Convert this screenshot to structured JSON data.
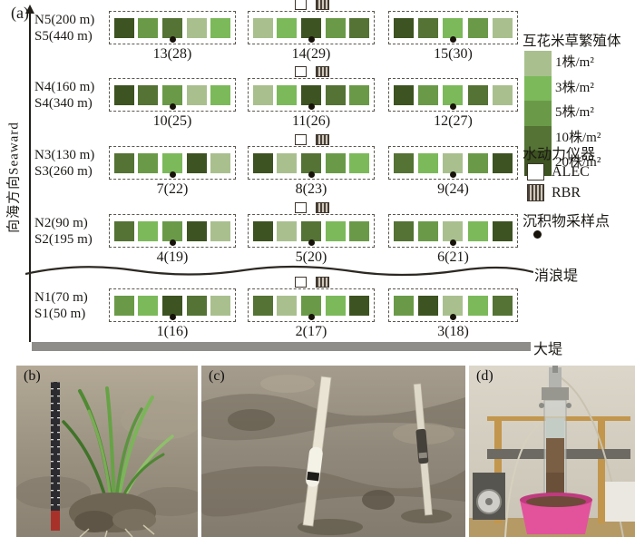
{
  "figure": {
    "panel_label": "(a)",
    "axis_label": "向海方向Seaward",
    "rows": [
      {
        "north_label": "N5(200 m)",
        "south_label": "S5(440 m)",
        "plots": [
          {
            "number": "13(28)",
            "densities": [
              20,
              5,
              10,
              1,
              3
            ]
          },
          {
            "number": "14(29)",
            "densities": [
              1,
              3,
              20,
              5,
              10
            ]
          },
          {
            "number": "15(30)",
            "densities": [
              20,
              10,
              3,
              5,
              1
            ]
          }
        ]
      },
      {
        "north_label": "N4(160 m)",
        "south_label": "S4(340 m)",
        "plots": [
          {
            "number": "10(25)",
            "densities": [
              20,
              10,
              5,
              1,
              3
            ]
          },
          {
            "number": "11(26)",
            "densities": [
              1,
              3,
              20,
              10,
              5
            ]
          },
          {
            "number": "12(27)",
            "densities": [
              20,
              5,
              3,
              10,
              1
            ]
          }
        ]
      },
      {
        "north_label": "N3(130 m)",
        "south_label": "S3(260 m)",
        "plots": [
          {
            "number": "7(22)",
            "densities": [
              10,
              5,
              3,
              20,
              1
            ]
          },
          {
            "number": "8(23)",
            "densities": [
              20,
              1,
              10,
              5,
              3
            ]
          },
          {
            "number": "9(24)",
            "densities": [
              10,
              3,
              1,
              5,
              20
            ]
          }
        ]
      },
      {
        "north_label": "N2(90 m)",
        "south_label": "S2(195 m)",
        "plots": [
          {
            "number": "4(19)",
            "densities": [
              10,
              3,
              5,
              20,
              1
            ]
          },
          {
            "number": "5(20)",
            "densities": [
              20,
              1,
              10,
              3,
              5
            ]
          },
          {
            "number": "6(21)",
            "densities": [
              10,
              5,
              1,
              3,
              20
            ]
          }
        ]
      },
      {
        "north_label": "N1(70 m)",
        "south_label": "S1(50 m)",
        "plots": [
          {
            "number": "1(16)",
            "densities": [
              5,
              3,
              20,
              10,
              1
            ]
          },
          {
            "number": "2(17)",
            "densities": [
              10,
              1,
              5,
              3,
              20
            ]
          },
          {
            "number": "3(18)",
            "densities": [
              5,
              20,
              1,
              3,
              10
            ]
          }
        ]
      }
    ],
    "legend": {
      "propagule_title": "互花米草繁殖体",
      "density_items": [
        {
          "label": "1株/m²",
          "density": 1,
          "color": "#a9c08e"
        },
        {
          "label": "3株/m²",
          "density": 3,
          "color": "#7cb95a"
        },
        {
          "label": "5株/m²",
          "density": 5,
          "color": "#6a9a48"
        },
        {
          "label": "10株/m²",
          "density": 10,
          "color": "#547334"
        },
        {
          "label": "20株/m²",
          "density": 20,
          "color": "#3d5321"
        }
      ],
      "instrument_title": "水动力仪器",
      "alec_label": "ALEC",
      "rbr_label": "RBR",
      "sediment_title": "沉积物采样点",
      "wave_break_label": "消浪堤",
      "dike_label": "大堤"
    },
    "photo_labels": {
      "b": "(b)",
      "c": "(c)",
      "d": "(d)"
    }
  }
}
